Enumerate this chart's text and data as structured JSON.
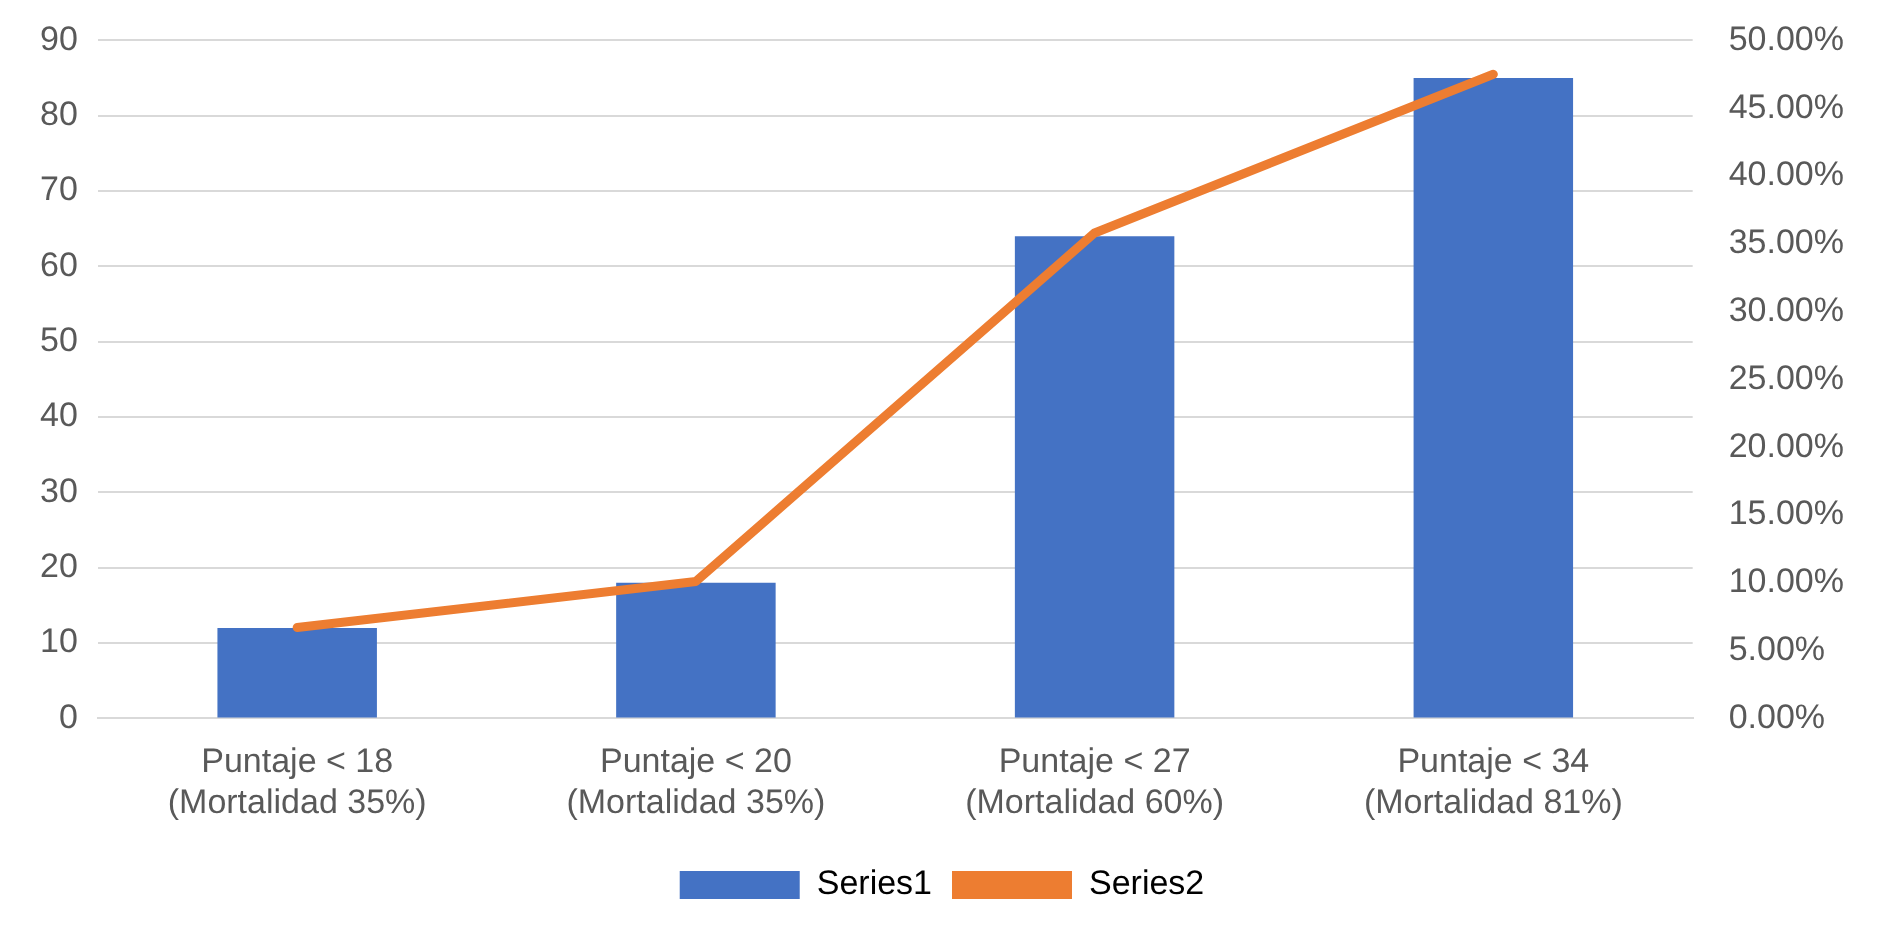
{
  "chart_data": {
    "type": "bar",
    "categories": [
      "Puntaje < 18\n(Mortalidad 35%)",
      "Puntaje < 20\n(Mortalidad 35%)",
      "Puntaje < 27\n(Mortalidad 60%)",
      "Puntaje < 34\n(Mortalidad 81%)"
    ],
    "series": [
      {
        "name": "Series1",
        "color": "#4472c4",
        "values": [
          12,
          18,
          64,
          85
        ]
      },
      {
        "name": "Series2",
        "type": "line",
        "axis": "y2",
        "color": "#ed7d31",
        "values": [
          6.7,
          10.1,
          35.8,
          47.5
        ]
      }
    ],
    "ylim": [
      0,
      90
    ],
    "yticks": [
      0,
      10,
      20,
      30,
      40,
      50,
      60,
      70,
      80,
      90
    ],
    "y2lim": [
      0,
      50
    ],
    "y2ticks": [
      {
        "value": 0,
        "label": "0.00%"
      },
      {
        "value": 5,
        "label": "5.00%"
      },
      {
        "value": 10,
        "label": "10.00%"
      },
      {
        "value": 15,
        "label": "15.00%"
      },
      {
        "value": 20,
        "label": "20.00%"
      },
      {
        "value": 25,
        "label": "25.00%"
      },
      {
        "value": 30,
        "label": "30.00%"
      },
      {
        "value": 35,
        "label": "35.00%"
      },
      {
        "value": 40,
        "label": "40.00%"
      },
      {
        "value": 45,
        "label": "45.00%"
      },
      {
        "value": 50,
        "label": "50.00%"
      }
    ],
    "grid": "y",
    "legend": "bottom",
    "marker": "none"
  }
}
